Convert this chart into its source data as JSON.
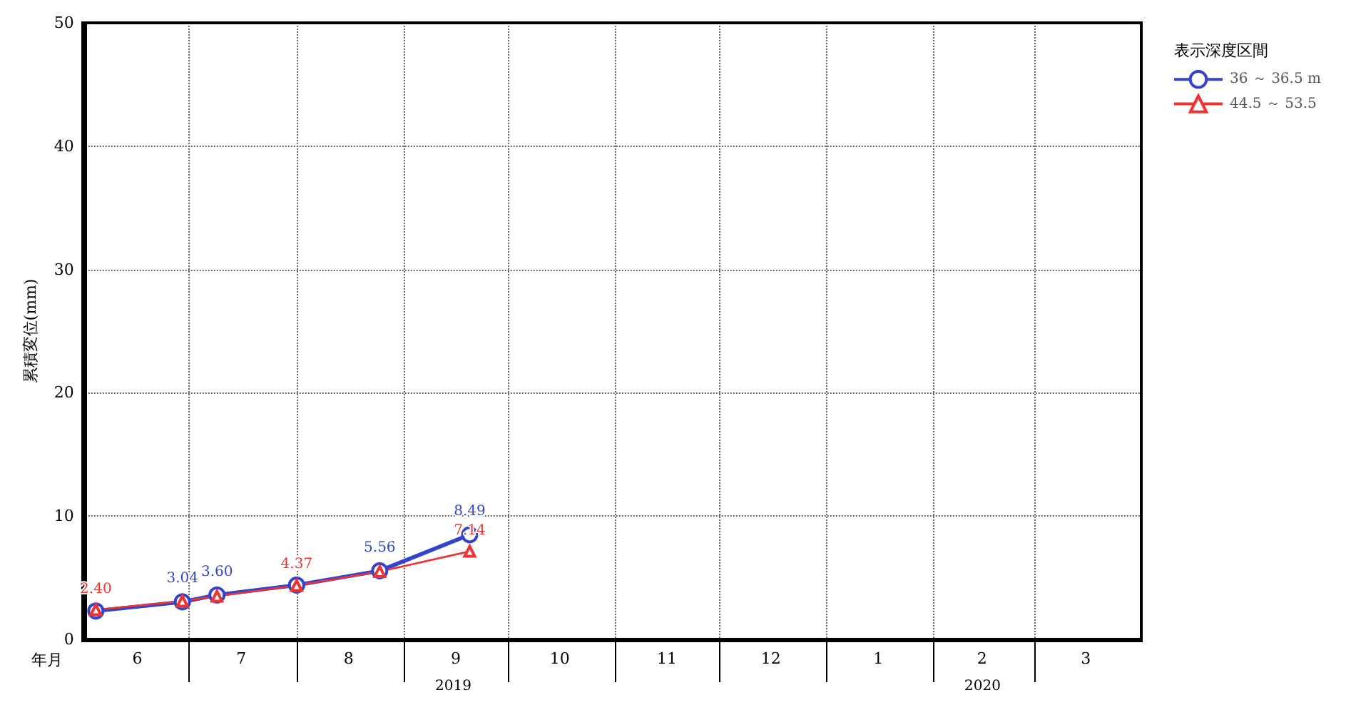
{
  "chart_data": {
    "type": "line",
    "ylabel": "累積変位(mm)",
    "xlabel": "年月",
    "legend_title": "表示深度区間",
    "legend": "top right",
    "grid": true,
    "x": [
      "2019-06-04",
      "2019-06-29",
      "2019-07-09",
      "2019-08-01",
      "2019-08-25",
      "2019-09-20"
    ],
    "xlim": [
      "2019-06-01",
      "2020-04-01"
    ],
    "xticks": [
      {
        "value": "2019-07-01",
        "label": null
      },
      {
        "value": "2019-08-01",
        "label": null
      },
      {
        "value": "2019-09-01",
        "label": null
      },
      {
        "value": "2019-10-01",
        "label": null
      },
      {
        "value": "2019-11-01",
        "label": null
      },
      {
        "value": "2019-12-01",
        "label": null
      },
      {
        "value": "2020-01-01",
        "label": null
      },
      {
        "value": "2020-02-01",
        "label": null
      },
      {
        "value": "2020-03-01",
        "label": null
      },
      {
        "value": "2019-06-16",
        "label": "6"
      },
      {
        "value": "2019-07-16",
        "label": "7"
      },
      {
        "value": "2019-08-16",
        "label": "8"
      },
      {
        "value": "2019-09-16",
        "label": "9"
      },
      {
        "value": "2019-10-16",
        "label": "10"
      },
      {
        "value": "2019-11-16",
        "label": "11"
      },
      {
        "value": "2019-12-16",
        "label": "12"
      },
      {
        "value": "2020-01-16",
        "label": "1"
      },
      {
        "value": "2020-02-15",
        "label": "2"
      },
      {
        "value": "2020-03-16",
        "label": "3"
      }
    ],
    "ylim": [
      0,
      50
    ],
    "yticks": [
      0,
      10,
      20,
      30,
      40,
      50
    ],
    "annotations": [
      "2019",
      "2020"
    ],
    "series": [
      {
        "name": "36 ～ 36.5 m",
        "color": "#3344cc",
        "marker": "circle",
        "values": [
          2.3,
          3.04,
          3.6,
          4.4,
          5.56,
          8.49
        ],
        "value_labels": [
          null,
          "3.04",
          "3.60",
          null,
          "5.56",
          "8.49"
        ]
      },
      {
        "name": "44.5 ～ 53.5",
        "color": "#ee3333",
        "marker": "triangle",
        "values": [
          2.4,
          3.1,
          3.5,
          4.37,
          5.5,
          7.14
        ],
        "value_labels": [
          "2.40",
          null,
          null,
          "4.37",
          null,
          "7.14"
        ]
      }
    ]
  }
}
